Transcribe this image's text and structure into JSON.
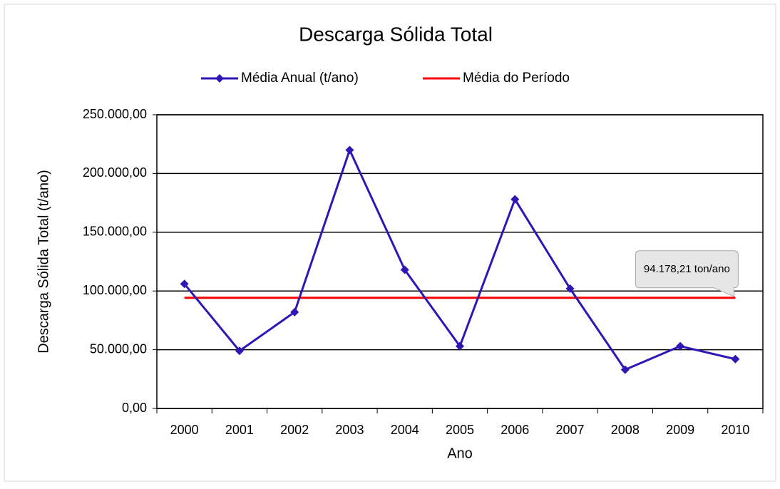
{
  "chart_data": {
    "type": "line",
    "title": "Descarga Sólida Total",
    "x_label": "Ano",
    "y_label": "Descarga Sólida Total (t/ano)",
    "categories": [
      "2000",
      "2001",
      "2002",
      "2003",
      "2004",
      "2005",
      "2006",
      "2007",
      "2008",
      "2009",
      "2010"
    ],
    "series": [
      {
        "name": "Média Anual (t/ano)",
        "color": "#2e17b5",
        "marker": "diamond",
        "values": [
          106000,
          49000,
          82000,
          220000,
          118000,
          53000,
          178000,
          102000,
          33000,
          53000,
          42000
        ]
      },
      {
        "name": "Média do Período",
        "color": "#ff0000",
        "values": [
          94178.21,
          94178.21,
          94178.21,
          94178.21,
          94178.21,
          94178.21,
          94178.21,
          94178.21,
          94178.21,
          94178.21,
          94178.21
        ]
      }
    ],
    "annotation": "94.178,21 ton/ano",
    "ylim": [
      0,
      250000
    ],
    "yticks": [
      {
        "value": 0,
        "label": "0,00"
      },
      {
        "value": 50000,
        "label": "50.000,00"
      },
      {
        "value": 100000,
        "label": "100.000,00"
      },
      {
        "value": 150000,
        "label": "150.000,00"
      },
      {
        "value": 200000,
        "label": "200.000,00"
      },
      {
        "value": 250000,
        "label": "250.000,00"
      }
    ],
    "grid": true,
    "legend": "top"
  }
}
